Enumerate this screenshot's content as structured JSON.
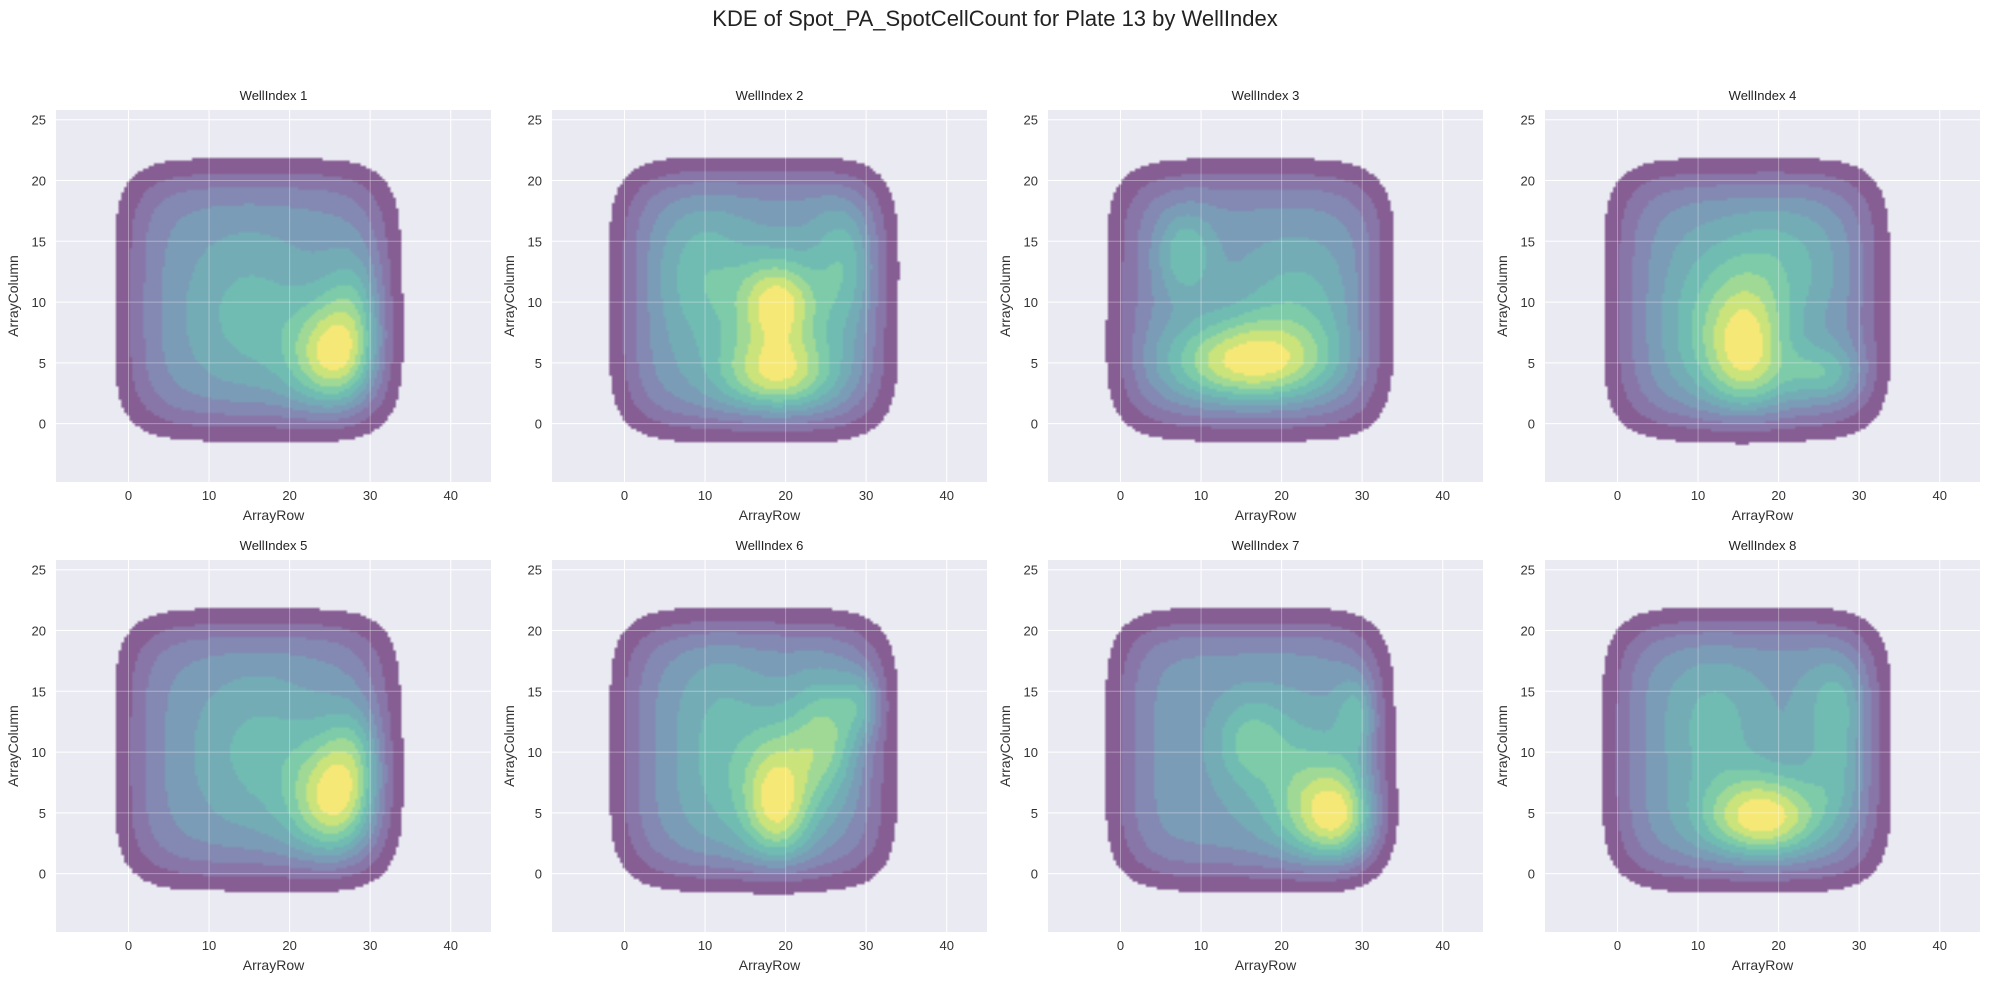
{
  "figure": {
    "title": "KDE of Spot_PA_SpotCellCount for Plate 13 by WellIndex",
    "background": "#ffffff",
    "axes_facecolor": "#eaeaf2",
    "grid_color": "#ffffff"
  },
  "chart_data": {
    "type": "kde",
    "layout": {
      "rows": 2,
      "cols": 4
    },
    "xlabel": "ArrayRow",
    "ylabel": "ArrayColumn",
    "xlim": [
      -9,
      45
    ],
    "ylim": [
      -4.8,
      25.8
    ],
    "xticks": [
      0,
      10,
      20,
      30,
      40
    ],
    "yticks": [
      0,
      5,
      10,
      15,
      20,
      25
    ],
    "grid": true,
    "levels": 10,
    "fill_alpha": 0.6,
    "colormap": [
      "#440154",
      "#482878",
      "#3e4989",
      "#31688e",
      "#26828e",
      "#1f9e89",
      "#35b779",
      "#6ece58",
      "#b5de2b",
      "#fde725"
    ],
    "panels": [
      {
        "title": "WellIndex 1",
        "hotspots": [
          [
            26,
            5.5,
            4,
            3.2,
            1.0
          ],
          [
            29,
            10,
            3,
            3.5,
            0.45
          ],
          [
            15,
            9,
            6,
            5,
            0.35
          ]
        ]
      },
      {
        "title": "WellIndex 2",
        "hotspots": [
          [
            19,
            10,
            3.5,
            2.5,
            0.8
          ],
          [
            19,
            4,
            5,
            2.5,
            0.8
          ],
          [
            28,
            13,
            3,
            4,
            0.4
          ],
          [
            10,
            12,
            4,
            4,
            0.3
          ]
        ]
      },
      {
        "title": "WellIndex 3",
        "hotspots": [
          [
            16,
            5,
            7,
            2.5,
            1.0
          ],
          [
            8,
            14,
            2.5,
            2.5,
            0.45
          ],
          [
            22,
            10,
            6,
            4,
            0.35
          ],
          [
            33,
            16,
            3,
            3,
            0.15
          ]
        ]
      },
      {
        "title": "WellIndex 4",
        "hotspots": [
          [
            16,
            6,
            3.5,
            4,
            0.9
          ],
          [
            26,
            4,
            4,
            1.8,
            0.5
          ],
          [
            20,
            13,
            6,
            4,
            0.35
          ],
          [
            10,
            8,
            4,
            5,
            0.3
          ]
        ]
      },
      {
        "title": "WellIndex 5",
        "hotspots": [
          [
            26,
            6,
            4,
            3.5,
            1.0
          ],
          [
            29,
            10,
            3,
            3,
            0.45
          ],
          [
            16,
            10,
            6,
            5,
            0.35
          ]
        ]
      },
      {
        "title": "WellIndex 6",
        "hotspots": [
          [
            19,
            6,
            3,
            4,
            0.9
          ],
          [
            25,
            11,
            3,
            3.5,
            0.6
          ],
          [
            30,
            14,
            2,
            2,
            0.55
          ],
          [
            12,
            10,
            4,
            6,
            0.3
          ]
        ]
      },
      {
        "title": "WellIndex 7",
        "hotspots": [
          [
            28,
            4.5,
            4.5,
            3,
            1.0
          ],
          [
            30,
            13,
            2,
            2.5,
            0.6
          ],
          [
            16,
            11,
            3,
            2.5,
            0.35
          ],
          [
            22,
            8,
            5,
            4,
            0.3
          ]
        ]
      },
      {
        "title": "WellIndex 8",
        "hotspots": [
          [
            18,
            4.5,
            5,
            2.5,
            0.9
          ],
          [
            28,
            14,
            3,
            3,
            0.35
          ],
          [
            12,
            12,
            4,
            4,
            0.25
          ],
          [
            28,
            8,
            3,
            3,
            0.25
          ]
        ]
      }
    ]
  }
}
